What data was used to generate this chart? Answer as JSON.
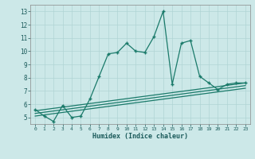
{
  "xlabel": "Humidex (Indice chaleur)",
  "xlim": [
    -0.5,
    23.5
  ],
  "ylim": [
    4.5,
    13.5
  ],
  "yticks": [
    5,
    6,
    7,
    8,
    9,
    10,
    11,
    12,
    13
  ],
  "xticks": [
    0,
    1,
    2,
    3,
    4,
    5,
    6,
    7,
    8,
    9,
    10,
    11,
    12,
    13,
    14,
    15,
    16,
    17,
    18,
    19,
    20,
    21,
    22,
    23
  ],
  "background_color": "#cce8e8",
  "grid_color": "#b0d4d4",
  "line_color": "#1a7a6a",
  "line1_x": [
    0,
    1,
    2,
    3,
    4,
    5,
    6,
    7,
    8,
    9,
    10,
    11,
    12,
    13,
    14,
    15,
    16,
    17,
    18,
    19,
    20,
    21,
    22,
    23
  ],
  "line1_y": [
    5.6,
    5.1,
    4.7,
    5.9,
    5.0,
    5.1,
    6.4,
    8.1,
    9.8,
    9.9,
    10.6,
    10.0,
    9.9,
    11.1,
    13.0,
    7.5,
    10.6,
    10.8,
    8.1,
    7.6,
    7.1,
    7.5,
    7.6,
    7.6
  ],
  "line2_x": [
    0,
    23
  ],
  "line2_y": [
    5.5,
    7.6
  ],
  "line3_x": [
    0,
    23
  ],
  "line3_y": [
    5.3,
    7.4
  ],
  "line4_x": [
    0,
    23
  ],
  "line4_y": [
    5.1,
    7.2
  ]
}
